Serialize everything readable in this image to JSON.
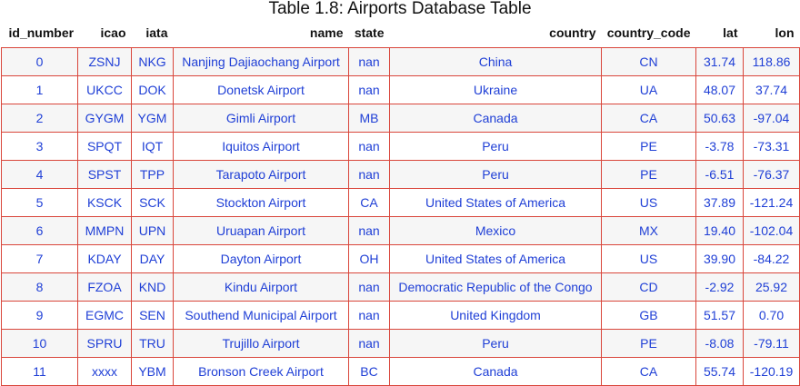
{
  "title": "Table 1.8: Airports Database Table",
  "columns": [
    "id_number",
    "icao",
    "iata",
    "name",
    "state",
    "country",
    "country_code",
    "lat",
    "lon"
  ],
  "rows": [
    [
      "0",
      "ZSNJ",
      "NKG",
      "Nanjing Dajiaochang Airport",
      "nan",
      "China",
      "CN",
      "31.74",
      "118.86"
    ],
    [
      "1",
      "UKCC",
      "DOK",
      "Donetsk Airport",
      "nan",
      "Ukraine",
      "UA",
      "48.07",
      "37.74"
    ],
    [
      "2",
      "GYGM",
      "YGM",
      "Gimli Airport",
      "MB",
      "Canada",
      "CA",
      "50.63",
      "-97.04"
    ],
    [
      "3",
      "SPQT",
      "IQT",
      "Iquitos Airport",
      "nan",
      "Peru",
      "PE",
      "-3.78",
      "-73.31"
    ],
    [
      "4",
      "SPST",
      "TPP",
      "Tarapoto Airport",
      "nan",
      "Peru",
      "PE",
      "-6.51",
      "-76.37"
    ],
    [
      "5",
      "KSCK",
      "SCK",
      "Stockton Airport",
      "CA",
      "United States of America",
      "US",
      "37.89",
      "-121.24"
    ],
    [
      "6",
      "MMPN",
      "UPN",
      "Uruapan Airport",
      "nan",
      "Mexico",
      "MX",
      "19.40",
      "-102.04"
    ],
    [
      "7",
      "KDAY",
      "DAY",
      "Dayton Airport",
      "OH",
      "United States of America",
      "US",
      "39.90",
      "-84.22"
    ],
    [
      "8",
      "FZOA",
      "KND",
      "Kindu Airport",
      "nan",
      "Democratic Republic of the Congo",
      "CD",
      "-2.92",
      "25.92"
    ],
    [
      "9",
      "EGMC",
      "SEN",
      "Southend Municipal Airport",
      "nan",
      "United Kingdom",
      "GB",
      "51.57",
      "0.70"
    ],
    [
      "10",
      "SPRU",
      "TRU",
      "Trujillo Airport",
      "nan",
      "Peru",
      "PE",
      "-8.08",
      "-79.11"
    ],
    [
      "11",
      "xxxx",
      "YBM",
      "Bronson Creek Airport",
      "BC",
      "Canada",
      "CA",
      "55.74",
      "-120.19"
    ]
  ],
  "colors": {
    "cell_text": "#1f3fd6",
    "cell_border": "#d9463b",
    "stripe": "#f6f6f6"
  }
}
